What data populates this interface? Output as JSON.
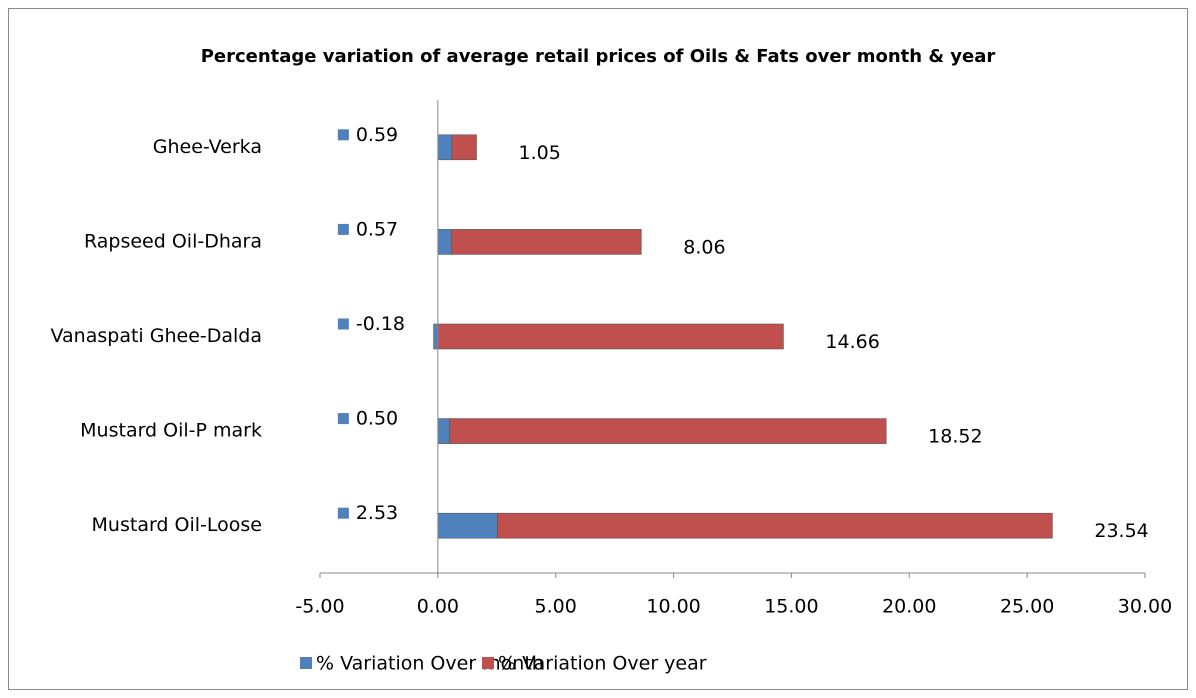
{
  "chart_data": {
    "type": "bar",
    "orientation": "horizontal",
    "stacked": true,
    "title": "Percentage variation  of average retail prices of Oils & Fats over month & year",
    "categories": [
      "Ghee-Verka",
      "Rapseed Oil-Dhara",
      "Vanaspati Ghee-Dalda",
      "Mustard Oil-P mark",
      "Mustard Oil-Loose"
    ],
    "series": [
      {
        "name": "% Variation Over month",
        "color": "#4f81bd",
        "values": [
          0.59,
          0.57,
          -0.18,
          0.5,
          2.53
        ],
        "value_labels": [
          "0.59",
          "0.57",
          "-0.18",
          "0.50",
          "2.53"
        ]
      },
      {
        "name": "% Variation Over year",
        "color": "#c0504d",
        "values": [
          1.05,
          8.06,
          14.66,
          18.52,
          23.54
        ],
        "value_labels": [
          "1.05",
          "8.06",
          "14.66",
          "18.52",
          "23.54"
        ]
      }
    ],
    "xlim": [
      -5,
      30
    ],
    "xticks": [
      {
        "value": -5,
        "label": "-5.00"
      },
      {
        "value": 0,
        "label": "0.00"
      },
      {
        "value": 5,
        "label": "5.00"
      },
      {
        "value": 10,
        "label": "10.00"
      },
      {
        "value": 15,
        "label": "15.00"
      },
      {
        "value": 20,
        "label": "20.00"
      },
      {
        "value": 25,
        "label": "25.00"
      },
      {
        "value": 30,
        "label": "30.00"
      }
    ],
    "legend": "bottom"
  }
}
